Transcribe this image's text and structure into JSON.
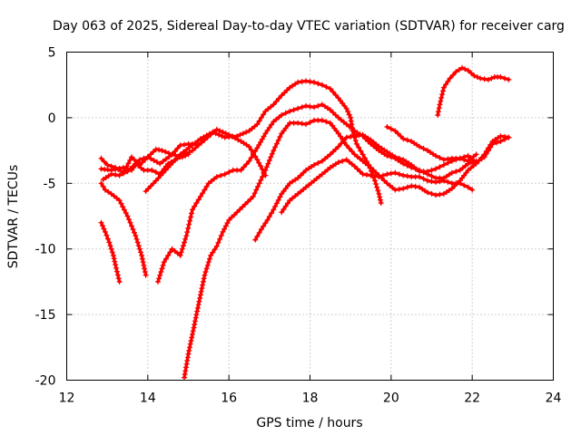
{
  "chart_data": {
    "type": "scatter",
    "title": "Day 063 of 2025, Sidereal Day-to-day VTEC variation (SDTVAR) for receiver carg",
    "xlabel": "GPS time / hours",
    "ylabel": "SDTVAR / TECUs",
    "xlim": [
      12,
      24
    ],
    "ylim": [
      -20,
      5
    ],
    "xticks": [
      12,
      14,
      16,
      18,
      20,
      22,
      24
    ],
    "yticks": [
      5,
      0,
      -5,
      -10,
      -15,
      -20
    ],
    "grid": true,
    "marker": "plus",
    "color": "#ff0000",
    "series": [
      {
        "points": [
          [
            12.85,
            -8.0
          ],
          [
            12.95,
            -8.7
          ],
          [
            13.05,
            -9.5
          ],
          [
            13.15,
            -10.5
          ],
          [
            13.2,
            -11.2
          ],
          [
            13.3,
            -12.5
          ]
        ]
      },
      {
        "points": [
          [
            12.85,
            -5.0
          ],
          [
            12.95,
            -5.5
          ],
          [
            13.1,
            -5.8
          ],
          [
            13.3,
            -6.3
          ],
          [
            13.5,
            -7.5
          ],
          [
            13.7,
            -9.0
          ],
          [
            13.85,
            -10.5
          ],
          [
            13.95,
            -12.0
          ]
        ]
      },
      {
        "points": [
          [
            12.85,
            -3.1
          ],
          [
            13.0,
            -3.6
          ],
          [
            13.2,
            -3.8
          ],
          [
            13.4,
            -4.2
          ],
          [
            13.6,
            -3.0
          ],
          [
            13.8,
            -3.6
          ],
          [
            14.0,
            -3.0
          ],
          [
            14.3,
            -3.5
          ],
          [
            14.6,
            -2.8
          ],
          [
            14.8,
            -2.1
          ],
          [
            15.0,
            -2.0
          ],
          [
            15.2,
            -2.0
          ]
        ]
      },
      {
        "points": [
          [
            12.85,
            -3.9
          ],
          [
            13.1,
            -4.0
          ],
          [
            13.4,
            -3.8
          ],
          [
            13.6,
            -4.0
          ],
          [
            13.8,
            -3.2
          ],
          [
            14.0,
            -3.0
          ],
          [
            14.2,
            -2.4
          ],
          [
            14.35,
            -2.5
          ],
          [
            14.6,
            -2.8
          ],
          [
            14.85,
            -3.0
          ],
          [
            15.0,
            -2.8
          ]
        ]
      },
      {
        "points": [
          [
            12.9,
            -4.7
          ],
          [
            13.1,
            -4.3
          ],
          [
            13.3,
            -4.4
          ],
          [
            13.5,
            -4.1
          ],
          [
            13.7,
            -3.5
          ],
          [
            13.9,
            -4.0
          ],
          [
            14.1,
            -4.0
          ],
          [
            14.3,
            -4.3
          ],
          [
            14.5,
            -3.5
          ],
          [
            14.8,
            -3.0
          ],
          [
            15.1,
            -2.5
          ],
          [
            15.4,
            -1.7
          ],
          [
            15.7,
            -0.9
          ],
          [
            16.0,
            -1.3
          ],
          [
            16.3,
            -1.8
          ],
          [
            16.5,
            -2.2
          ],
          [
            16.7,
            -3.2
          ],
          [
            16.9,
            -4.4
          ]
        ]
      },
      {
        "points": [
          [
            13.95,
            -5.6
          ],
          [
            14.2,
            -4.8
          ],
          [
            14.5,
            -3.8
          ],
          [
            14.8,
            -2.8
          ],
          [
            15.1,
            -2.1
          ],
          [
            15.3,
            -1.6
          ],
          [
            15.6,
            -1.1
          ],
          [
            15.9,
            -1.5
          ],
          [
            16.2,
            -1.4
          ],
          [
            16.5,
            -1.0
          ],
          [
            16.7,
            -0.5
          ],
          [
            16.9,
            0.5
          ],
          [
            17.1,
            1.0
          ],
          [
            17.3,
            1.7
          ],
          [
            17.5,
            2.3
          ],
          [
            17.7,
            2.7
          ],
          [
            17.9,
            2.8
          ],
          [
            18.1,
            2.7
          ],
          [
            18.3,
            2.5
          ],
          [
            18.5,
            2.2
          ],
          [
            18.7,
            1.5
          ],
          [
            18.9,
            0.7
          ],
          [
            19.0,
            0.0
          ],
          [
            19.05,
            -1.0
          ],
          [
            19.15,
            -2.0
          ],
          [
            19.3,
            -2.8
          ],
          [
            19.45,
            -3.6
          ],
          [
            19.6,
            -4.8
          ],
          [
            19.7,
            -5.8
          ],
          [
            19.75,
            -6.5
          ]
        ]
      },
      {
        "points": [
          [
            14.25,
            -12.5
          ],
          [
            14.4,
            -11.0
          ],
          [
            14.6,
            -10.0
          ],
          [
            14.8,
            -10.5
          ],
          [
            14.95,
            -9.0
          ],
          [
            15.1,
            -7.0
          ],
          [
            15.3,
            -6.0
          ],
          [
            15.5,
            -5.0
          ],
          [
            15.7,
            -4.5
          ],
          [
            15.9,
            -4.3
          ],
          [
            16.1,
            -4.0
          ],
          [
            16.3,
            -4.0
          ],
          [
            16.5,
            -3.3
          ],
          [
            16.7,
            -2.3
          ],
          [
            16.9,
            -1.2
          ],
          [
            17.1,
            -0.3
          ],
          [
            17.3,
            0.2
          ],
          [
            17.5,
            0.5
          ],
          [
            17.7,
            0.7
          ],
          [
            17.9,
            0.9
          ],
          [
            18.1,
            0.8
          ],
          [
            18.3,
            1.0
          ],
          [
            18.5,
            0.6
          ],
          [
            18.7,
            0.0
          ],
          [
            18.9,
            -0.5
          ],
          [
            19.1,
            -1.0
          ],
          [
            19.3,
            -1.4
          ],
          [
            19.5,
            -2.0
          ],
          [
            19.7,
            -2.5
          ],
          [
            19.9,
            -2.9
          ],
          [
            20.1,
            -3.1
          ],
          [
            20.3,
            -3.5
          ],
          [
            20.5,
            -3.8
          ],
          [
            20.7,
            -4.0
          ],
          [
            20.9,
            -4.3
          ],
          [
            21.1,
            -4.6
          ],
          [
            21.3,
            -4.6
          ],
          [
            21.5,
            -4.2
          ],
          [
            21.7,
            -4.0
          ],
          [
            21.9,
            -3.5
          ],
          [
            22.1,
            -3.3
          ]
        ]
      },
      {
        "points": [
          [
            14.9,
            -19.8
          ],
          [
            15.0,
            -18.0
          ],
          [
            15.1,
            -16.5
          ],
          [
            15.2,
            -15.0
          ],
          [
            15.3,
            -13.5
          ],
          [
            15.4,
            -12.0
          ],
          [
            15.55,
            -10.5
          ],
          [
            15.7,
            -9.8
          ],
          [
            15.85,
            -8.7
          ],
          [
            16.0,
            -7.8
          ],
          [
            16.2,
            -7.2
          ],
          [
            16.4,
            -6.6
          ],
          [
            16.6,
            -6.0
          ],
          [
            16.75,
            -5.0
          ],
          [
            16.9,
            -4.0
          ],
          [
            17.1,
            -2.5
          ],
          [
            17.3,
            -1.2
          ],
          [
            17.5,
            -0.4
          ],
          [
            17.7,
            -0.4
          ],
          [
            17.9,
            -0.5
          ],
          [
            18.1,
            -0.2
          ],
          [
            18.3,
            -0.2
          ],
          [
            18.5,
            -0.4
          ],
          [
            18.7,
            -1.2
          ],
          [
            18.9,
            -2.1
          ],
          [
            19.1,
            -2.8
          ],
          [
            19.3,
            -3.3
          ],
          [
            19.5,
            -3.8
          ],
          [
            19.7,
            -4.4
          ],
          [
            19.9,
            -5.0
          ],
          [
            20.1,
            -5.5
          ],
          [
            20.3,
            -5.4
          ],
          [
            20.5,
            -5.2
          ],
          [
            20.7,
            -5.3
          ],
          [
            20.9,
            -5.7
          ],
          [
            21.1,
            -5.9
          ],
          [
            21.3,
            -5.8
          ],
          [
            21.5,
            -5.4
          ],
          [
            21.7,
            -4.8
          ],
          [
            21.9,
            -4.0
          ],
          [
            22.1,
            -3.5
          ],
          [
            22.3,
            -2.8
          ],
          [
            22.5,
            -1.8
          ],
          [
            22.7,
            -1.4
          ],
          [
            22.9,
            -1.5
          ]
        ]
      },
      {
        "points": [
          [
            16.65,
            -9.3
          ],
          [
            16.8,
            -8.5
          ],
          [
            16.95,
            -7.8
          ],
          [
            17.1,
            -7.0
          ],
          [
            17.3,
            -5.8
          ],
          [
            17.5,
            -5.0
          ],
          [
            17.7,
            -4.6
          ],
          [
            17.9,
            -4.0
          ],
          [
            18.1,
            -3.6
          ],
          [
            18.3,
            -3.3
          ],
          [
            18.5,
            -2.8
          ],
          [
            18.7,
            -2.2
          ],
          [
            18.9,
            -1.5
          ],
          [
            19.1,
            -1.4
          ],
          [
            19.3,
            -1.3
          ],
          [
            19.5,
            -1.7
          ],
          [
            19.7,
            -2.2
          ],
          [
            19.9,
            -2.6
          ],
          [
            20.1,
            -3.0
          ],
          [
            20.3,
            -3.2
          ],
          [
            20.5,
            -3.6
          ],
          [
            20.7,
            -4.1
          ],
          [
            20.9,
            -4.1
          ],
          [
            21.1,
            -3.9
          ],
          [
            21.3,
            -3.6
          ],
          [
            21.5,
            -3.3
          ],
          [
            21.7,
            -3.1
          ],
          [
            21.9,
            -3.3
          ],
          [
            22.1,
            -2.8
          ]
        ]
      },
      {
        "points": [
          [
            17.3,
            -7.2
          ],
          [
            17.5,
            -6.3
          ],
          [
            17.7,
            -5.8
          ],
          [
            17.9,
            -5.3
          ],
          [
            18.1,
            -4.8
          ],
          [
            18.3,
            -4.3
          ],
          [
            18.5,
            -3.8
          ],
          [
            18.7,
            -3.4
          ],
          [
            18.9,
            -3.2
          ],
          [
            19.1,
            -3.7
          ],
          [
            19.3,
            -4.3
          ],
          [
            19.5,
            -4.4
          ],
          [
            19.7,
            -4.5
          ],
          [
            19.9,
            -4.3
          ],
          [
            20.1,
            -4.2
          ],
          [
            20.3,
            -4.4
          ],
          [
            20.5,
            -4.5
          ],
          [
            20.7,
            -4.5
          ],
          [
            20.9,
            -4.8
          ],
          [
            21.1,
            -4.9
          ],
          [
            21.3,
            -4.8
          ],
          [
            21.5,
            -5.0
          ],
          [
            21.7,
            -5.0
          ],
          [
            21.9,
            -5.3
          ],
          [
            22.0,
            -5.5
          ]
        ]
      },
      {
        "points": [
          [
            19.9,
            -0.7
          ],
          [
            20.1,
            -1.0
          ],
          [
            20.3,
            -1.6
          ],
          [
            20.5,
            -1.8
          ],
          [
            20.7,
            -2.2
          ],
          [
            20.9,
            -2.5
          ],
          [
            21.1,
            -2.9
          ],
          [
            21.3,
            -3.2
          ],
          [
            21.5,
            -3.1
          ],
          [
            21.7,
            -3.1
          ],
          [
            21.9,
            -2.9
          ],
          [
            22.1,
            -3.4
          ],
          [
            22.3,
            -3.0
          ],
          [
            22.5,
            -2.0
          ],
          [
            22.7,
            -1.8
          ],
          [
            22.9,
            -1.5
          ]
        ]
      },
      {
        "points": [
          [
            21.15,
            0.2
          ],
          [
            21.2,
            1.0
          ],
          [
            21.3,
            2.3
          ],
          [
            21.45,
            3.0
          ],
          [
            21.6,
            3.5
          ],
          [
            21.75,
            3.8
          ],
          [
            21.9,
            3.6
          ],
          [
            22.05,
            3.2
          ],
          [
            22.2,
            3.0
          ],
          [
            22.4,
            2.9
          ],
          [
            22.55,
            3.1
          ],
          [
            22.7,
            3.1
          ],
          [
            22.9,
            2.9
          ]
        ]
      }
    ]
  }
}
